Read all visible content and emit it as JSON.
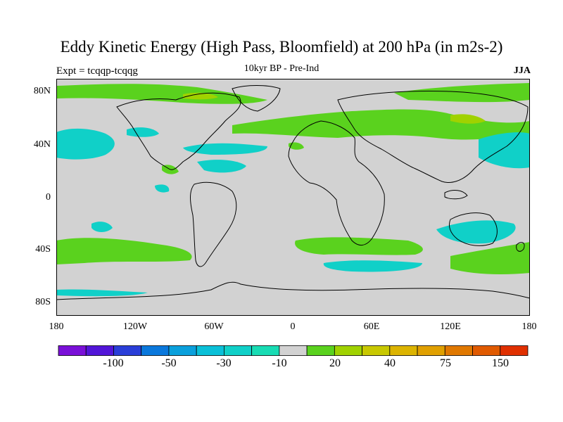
{
  "header": {
    "title": "Eddy Kinetic Energy (High Pass, Bloomfield) at 200 hPa (in m2s-2)",
    "experiment": "Expt = tcqqp-tcqqg",
    "subtitle": "10kyr BP - Pre-Ind",
    "season": "JJA"
  },
  "axes": {
    "lat_labels": [
      "80N",
      "40N",
      "0",
      "40S",
      "80S"
    ],
    "lon_labels": [
      "180",
      "120W",
      "60W",
      "0",
      "60E",
      "120E",
      "180"
    ]
  },
  "colorbar": {
    "colors": [
      "#7a10d8",
      "#5215d8",
      "#2a3ed8",
      "#0a78dc",
      "#0aa0dc",
      "#0ac0d8",
      "#10d0c8",
      "#18dcb4",
      "#d2d2d2",
      "#5ad21e",
      "#a0d200",
      "#c8c800",
      "#dcb400",
      "#e0a000",
      "#e07800",
      "#e05a00",
      "#e03000"
    ],
    "labels": [
      "-100",
      "-50",
      "-30",
      "-10",
      "20",
      "40",
      "75",
      "150"
    ]
  },
  "map_colors": {
    "background": "#d2d2d2",
    "green": "#5ad21e",
    "lightgreen": "#a0d200",
    "cyan": "#10d0c8",
    "lightcyan": "#18dcb4",
    "blue": "#0ac0d8"
  }
}
